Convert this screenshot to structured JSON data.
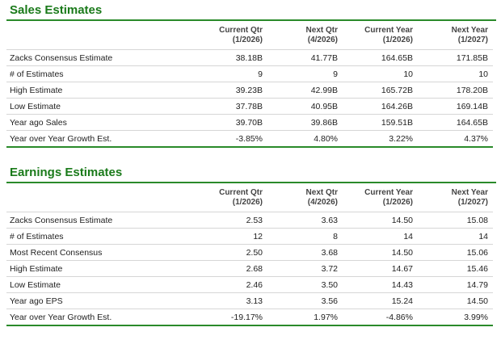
{
  "sales": {
    "title": "Sales Estimates",
    "columns": [
      {
        "line1": "Current Qtr",
        "line2": "(1/2026)"
      },
      {
        "line1": "Next Qtr",
        "line2": "(4/2026)"
      },
      {
        "line1": "Current Year",
        "line2": "(1/2026)"
      },
      {
        "line1": "Next Year",
        "line2": "(1/2027)"
      }
    ],
    "rows": [
      {
        "label": "Zacks Consensus Estimate",
        "values": [
          "38.18B",
          "41.77B",
          "164.65B",
          "171.85B"
        ]
      },
      {
        "label": "# of Estimates",
        "values": [
          "9",
          "9",
          "10",
          "10"
        ]
      },
      {
        "label": "High Estimate",
        "values": [
          "39.23B",
          "42.99B",
          "165.72B",
          "178.20B"
        ]
      },
      {
        "label": "Low Estimate",
        "values": [
          "37.78B",
          "40.95B",
          "164.26B",
          "169.14B"
        ]
      },
      {
        "label": "Year ago Sales",
        "values": [
          "39.70B",
          "39.86B",
          "159.51B",
          "164.65B"
        ]
      },
      {
        "label": "Year over Year Growth Est.",
        "values": [
          "-3.85%",
          "4.80%",
          "3.22%",
          "4.37%"
        ]
      }
    ]
  },
  "earnings": {
    "title": "Earnings Estimates",
    "columns": [
      {
        "line1": "Current Qtr",
        "line2": "(1/2026)"
      },
      {
        "line1": "Next Qtr",
        "line2": "(4/2026)"
      },
      {
        "line1": "Current Year",
        "line2": "(1/2026)"
      },
      {
        "line1": "Next Year",
        "line2": "(1/2027)"
      }
    ],
    "rows": [
      {
        "label": "Zacks Consensus Estimate",
        "values": [
          "2.53",
          "3.63",
          "14.50",
          "15.08"
        ]
      },
      {
        "label": "# of Estimates",
        "values": [
          "12",
          "8",
          "14",
          "14"
        ]
      },
      {
        "label": "Most Recent Consensus",
        "values": [
          "2.50",
          "3.68",
          "14.50",
          "15.06"
        ]
      },
      {
        "label": "High Estimate",
        "values": [
          "2.68",
          "3.72",
          "14.67",
          "15.46"
        ]
      },
      {
        "label": "Low Estimate",
        "values": [
          "2.46",
          "3.50",
          "14.43",
          "14.79"
        ]
      },
      {
        "label": "Year ago EPS",
        "values": [
          "3.13",
          "3.56",
          "15.24",
          "14.50"
        ]
      },
      {
        "label": "Year over Year Growth Est.",
        "values": [
          "-19.17%",
          "1.97%",
          "-4.86%",
          "3.99%"
        ]
      }
    ]
  },
  "colors": {
    "accent": "#1a7a1a",
    "rule": "#2a8a2a",
    "grid": "#d6d6d6"
  }
}
